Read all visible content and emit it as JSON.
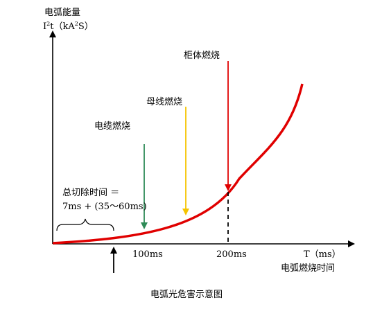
{
  "y_axis": {
    "title_line1": "电弧能量",
    "title_line2_I": "I",
    "title_line2_sup1": "2",
    "title_line2_t": "t（kA",
    "title_line2_sup2": "2",
    "title_line2_s": "S）"
  },
  "x_axis": {
    "unit_label": "T（ms）",
    "title": "电弧燃烧时间",
    "tick_100": "100ms",
    "tick_200": "200ms"
  },
  "annotations": {
    "cable": {
      "label": "电缆燃烧",
      "color": "#2e8b57"
    },
    "busbar": {
      "label": "母线燃烧",
      "color": "#f5c400"
    },
    "cabinet": {
      "label": "柜体燃烧",
      "color": "#e00000"
    },
    "clearing_time_line1": "总切除时间 ＝",
    "clearing_time_line2": "7ms + (35～60ms)"
  },
  "curve_color": "#e00000",
  "caption": "电弧光危害示意图"
}
